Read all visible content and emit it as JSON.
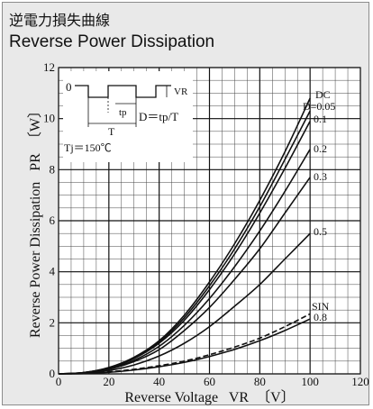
{
  "title_jp": "逆電力損失曲線",
  "title_en": "Reverse Power Dissipation",
  "chart_data": {
    "type": "line",
    "xlabel": "Reverse Voltage",
    "xlabel_symbol": "VR",
    "xlabel_unit": "〔V〕",
    "ylabel": "Reverse Power Dissipation",
    "ylabel_symbol": "PR",
    "ylabel_unit": "〔W〕",
    "xlim": [
      0,
      120
    ],
    "ylim": [
      0,
      12
    ],
    "x_ticks": [
      0,
      20,
      40,
      60,
      80,
      100,
      120
    ],
    "y_ticks": [
      0,
      2,
      4,
      6,
      8,
      10,
      12
    ],
    "grid": true,
    "series": [
      {
        "name": "DC",
        "label": "DC",
        "dashed": false,
        "points": [
          [
            0,
            0
          ],
          [
            10,
            0.05
          ],
          [
            20,
            0.25
          ],
          [
            30,
            0.65
          ],
          [
            40,
            1.3
          ],
          [
            50,
            2.3
          ],
          [
            60,
            3.6
          ],
          [
            70,
            5.1
          ],
          [
            80,
            6.8
          ],
          [
            90,
            8.7
          ],
          [
            100,
            10.8
          ]
        ]
      },
      {
        "name": "D=0.05",
        "label": "D=0.05",
        "dashed": false,
        "points": [
          [
            0,
            0
          ],
          [
            10,
            0.05
          ],
          [
            20,
            0.24
          ],
          [
            30,
            0.62
          ],
          [
            40,
            1.25
          ],
          [
            50,
            2.2
          ],
          [
            60,
            3.45
          ],
          [
            70,
            4.9
          ],
          [
            80,
            6.55
          ],
          [
            90,
            8.4
          ],
          [
            100,
            10.3
          ]
        ]
      },
      {
        "name": "0.1",
        "label": "0.1",
        "dashed": false,
        "points": [
          [
            0,
            0
          ],
          [
            10,
            0.05
          ],
          [
            20,
            0.23
          ],
          [
            30,
            0.6
          ],
          [
            40,
            1.2
          ],
          [
            50,
            2.1
          ],
          [
            60,
            3.3
          ],
          [
            70,
            4.7
          ],
          [
            80,
            6.3
          ],
          [
            90,
            8.05
          ],
          [
            100,
            9.9
          ]
        ]
      },
      {
        "name": "0.2",
        "label": "0.2",
        "dashed": false,
        "points": [
          [
            0,
            0
          ],
          [
            10,
            0.04
          ],
          [
            20,
            0.2
          ],
          [
            30,
            0.53
          ],
          [
            40,
            1.08
          ],
          [
            50,
            1.9
          ],
          [
            60,
            2.95
          ],
          [
            70,
            4.2
          ],
          [
            80,
            5.6
          ],
          [
            90,
            7.15
          ],
          [
            100,
            8.8
          ]
        ]
      },
      {
        "name": "0.3",
        "label": "0.3",
        "dashed": false,
        "points": [
          [
            0,
            0
          ],
          [
            10,
            0.04
          ],
          [
            20,
            0.18
          ],
          [
            30,
            0.48
          ],
          [
            40,
            0.95
          ],
          [
            50,
            1.7
          ],
          [
            60,
            2.6
          ],
          [
            70,
            3.7
          ],
          [
            80,
            4.9
          ],
          [
            90,
            6.3
          ],
          [
            100,
            7.7
          ]
        ]
      },
      {
        "name": "0.5",
        "label": "0.5",
        "dashed": false,
        "points": [
          [
            0,
            0
          ],
          [
            10,
            0.03
          ],
          [
            20,
            0.13
          ],
          [
            30,
            0.35
          ],
          [
            40,
            0.7
          ],
          [
            50,
            1.2
          ],
          [
            60,
            1.85
          ],
          [
            70,
            2.65
          ],
          [
            80,
            3.5
          ],
          [
            90,
            4.5
          ],
          [
            100,
            5.5
          ]
        ]
      },
      {
        "name": "SIN",
        "label": "SIN",
        "dashed": true,
        "points": [
          [
            0,
            0
          ],
          [
            10,
            0.02
          ],
          [
            20,
            0.08
          ],
          [
            30,
            0.18
          ],
          [
            40,
            0.32
          ],
          [
            50,
            0.5
          ],
          [
            60,
            0.75
          ],
          [
            70,
            1.05
          ],
          [
            80,
            1.4
          ],
          [
            90,
            1.85
          ],
          [
            100,
            2.35
          ]
        ]
      },
      {
        "name": "0.8",
        "label": "0.8",
        "dashed": false,
        "points": [
          [
            0,
            0
          ],
          [
            10,
            0.01
          ],
          [
            20,
            0.06
          ],
          [
            30,
            0.15
          ],
          [
            40,
            0.28
          ],
          [
            50,
            0.45
          ],
          [
            60,
            0.68
          ],
          [
            70,
            0.96
          ],
          [
            80,
            1.3
          ],
          [
            90,
            1.7
          ],
          [
            100,
            2.15
          ]
        ]
      }
    ],
    "inset": {
      "zero": "0",
      "vr": "VR",
      "tp": "tp",
      "t": "T",
      "formula": "D＝tp/T",
      "tj": "Tj＝150℃"
    }
  }
}
